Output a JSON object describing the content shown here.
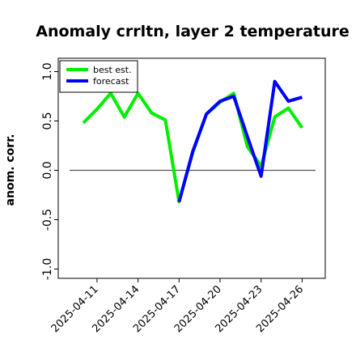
{
  "chart_data": {
    "type": "line",
    "title": "Anomaly crrltn, layer 2 temperature",
    "xlabel": "",
    "ylabel": "anom. corr.",
    "ylim": [
      -1.0,
      1.0
    ],
    "yticks": [
      -1.0,
      -0.5,
      0.0,
      0.5,
      1.0
    ],
    "ytick_labels": [
      "-1.0",
      "-0.5",
      "0.0",
      "0.5",
      "1.0"
    ],
    "x": [
      "2025-04-10",
      "2025-04-11",
      "2025-04-12",
      "2025-04-13",
      "2025-04-14",
      "2025-04-15",
      "2025-04-16",
      "2025-04-17",
      "2025-04-18",
      "2025-04-19",
      "2025-04-20",
      "2025-04-21",
      "2025-04-22",
      "2025-04-23",
      "2025-04-24",
      "2025-04-25",
      "2025-04-26"
    ],
    "xticks": [
      "2025-04-11",
      "2025-04-14",
      "2025-04-17",
      "2025-04-20",
      "2025-04-23",
      "2025-04-26"
    ],
    "highlight_tick": "2025-04-17",
    "highlight_color": "#228b22",
    "reference_line": 0.0,
    "grid": false,
    "legend_position": "top-left",
    "series": [
      {
        "name": "best est.",
        "color": "#00ee00",
        "values": [
          0.48,
          0.62,
          0.78,
          0.54,
          0.78,
          0.58,
          0.51,
          -0.32,
          0.18,
          0.57,
          0.69,
          0.78,
          0.24,
          0.04,
          0.54,
          0.63,
          0.43
        ]
      },
      {
        "name": "forecast",
        "color": "#0000ff",
        "values": [
          null,
          null,
          null,
          null,
          null,
          null,
          null,
          -0.32,
          0.19,
          0.57,
          0.7,
          0.75,
          0.34,
          -0.06,
          0.9,
          0.7,
          0.74
        ]
      }
    ]
  }
}
